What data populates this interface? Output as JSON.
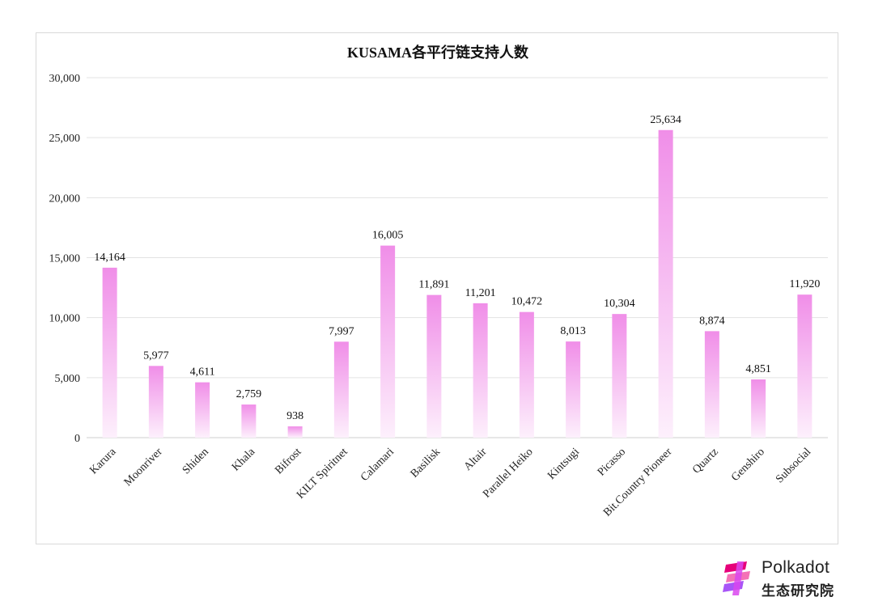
{
  "chart_data": {
    "type": "bar",
    "title": "KUSAMA各平行链支持人数",
    "categories": [
      "Karura",
      "Moonriver",
      "Shiden",
      "Khala",
      "Bifrost",
      "KILT Spiritnet",
      "Calamari",
      "Basilisk",
      "Altair",
      "Parallel Heiko",
      "Kintsugi",
      "Picasso",
      "Bit.Country Pioneer",
      "Quartz",
      "Genshiro",
      "Subsocial"
    ],
    "values": [
      14164,
      5977,
      4611,
      2759,
      938,
      7997,
      16005,
      11891,
      11201,
      10472,
      8013,
      10304,
      25634,
      8874,
      4851,
      11920
    ],
    "value_labels": [
      "14,164",
      "5,977",
      "4,611",
      "2,759",
      "938",
      "7,997",
      "16,005",
      "11,891",
      "11,201",
      "10,472",
      "8,013",
      "10,304",
      "25,634",
      "8,874",
      "4,851",
      "11,920"
    ],
    "xlabel": "",
    "ylabel": "",
    "ylim": [
      0,
      30000
    ],
    "yticks": [
      0,
      5000,
      10000,
      15000,
      20000,
      25000,
      30000
    ],
    "ytick_labels": [
      "0",
      "5,000",
      "10,000",
      "15,000",
      "20,000",
      "25,000",
      "30,000"
    ],
    "grid": true,
    "legend": "none",
    "bar_color_top": "#f08ee8",
    "bar_color_bottom": "#fdf0fc"
  },
  "logo": {
    "word": "Polkadot",
    "sub": "生态研究院",
    "colors": [
      "#e6007a",
      "#a855f7",
      "#f472b6"
    ]
  }
}
